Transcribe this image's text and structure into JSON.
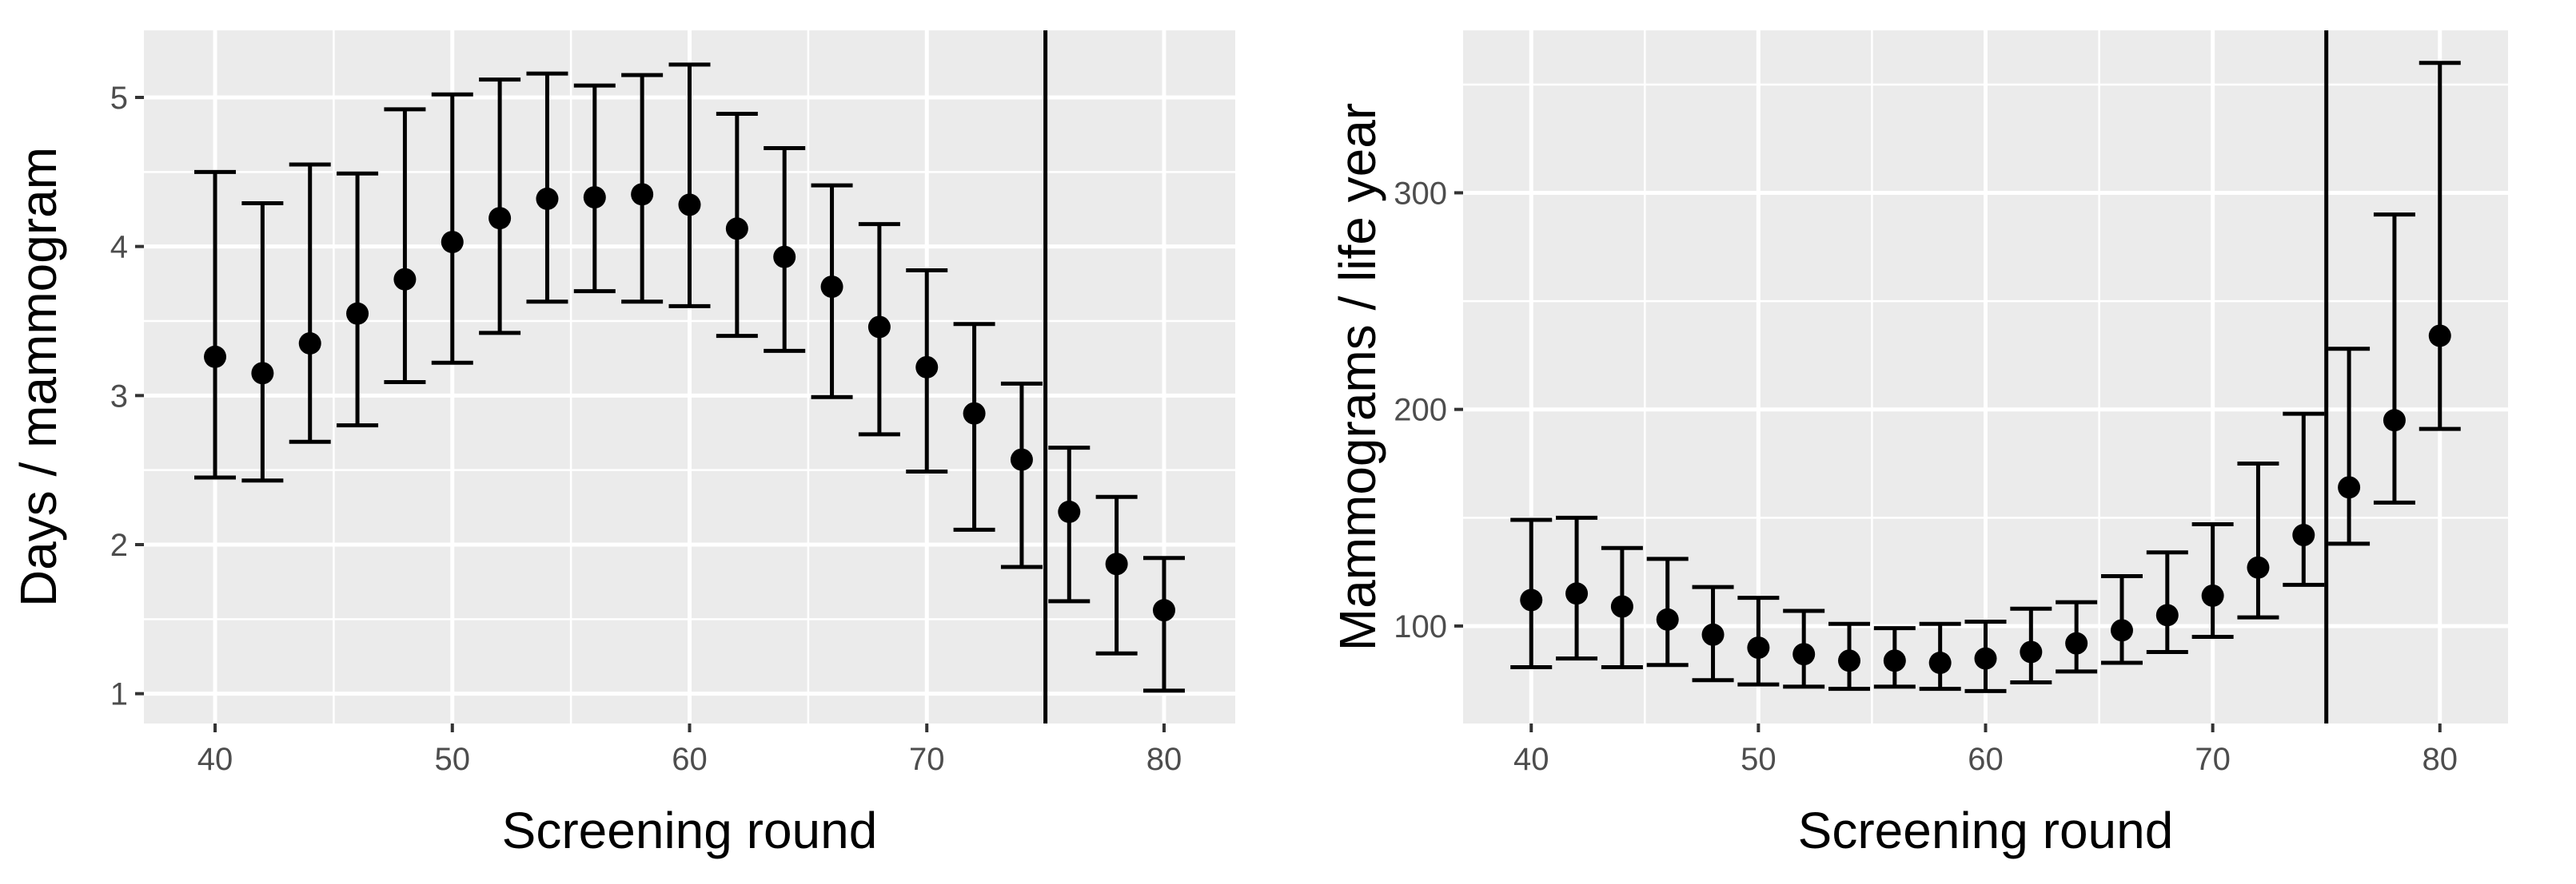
{
  "chart_data": [
    {
      "type": "scatter",
      "subtype": "point-with-errorbars",
      "xlabel": "Screening round",
      "ylabel": "Days / mammogram",
      "xlim": [
        37,
        83
      ],
      "ylim": [
        0.8,
        5.45
      ],
      "x_ticks": [
        40,
        50,
        60,
        70,
        80
      ],
      "y_ticks": [
        1,
        2,
        3,
        4,
        5
      ],
      "grid": true,
      "background": "#ebebeb",
      "vline_x": 75,
      "points": [
        {
          "x": 40,
          "y": 3.26,
          "lower": 2.45,
          "upper": 4.5
        },
        {
          "x": 42,
          "y": 3.15,
          "lower": 2.43,
          "upper": 4.29
        },
        {
          "x": 44,
          "y": 3.35,
          "lower": 2.69,
          "upper": 4.55
        },
        {
          "x": 46,
          "y": 3.55,
          "lower": 2.8,
          "upper": 4.49
        },
        {
          "x": 48,
          "y": 3.78,
          "lower": 3.09,
          "upper": 4.92
        },
        {
          "x": 50,
          "y": 4.03,
          "lower": 3.22,
          "upper": 5.02
        },
        {
          "x": 52,
          "y": 4.19,
          "lower": 3.42,
          "upper": 5.12
        },
        {
          "x": 54,
          "y": 4.32,
          "lower": 3.63,
          "upper": 5.16
        },
        {
          "x": 56,
          "y": 4.33,
          "lower": 3.7,
          "upper": 5.08
        },
        {
          "x": 58,
          "y": 4.35,
          "lower": 3.63,
          "upper": 5.15
        },
        {
          "x": 60,
          "y": 4.28,
          "lower": 3.6,
          "upper": 5.22
        },
        {
          "x": 62,
          "y": 4.12,
          "lower": 3.4,
          "upper": 4.89
        },
        {
          "x": 64,
          "y": 3.93,
          "lower": 3.3,
          "upper": 4.66
        },
        {
          "x": 66,
          "y": 3.73,
          "lower": 2.99,
          "upper": 4.41
        },
        {
          "x": 68,
          "y": 3.46,
          "lower": 2.74,
          "upper": 4.15
        },
        {
          "x": 70,
          "y": 3.19,
          "lower": 2.49,
          "upper": 3.84
        },
        {
          "x": 72,
          "y": 2.88,
          "lower": 2.1,
          "upper": 3.48
        },
        {
          "x": 74,
          "y": 2.57,
          "lower": 1.85,
          "upper": 3.08
        },
        {
          "x": 76,
          "y": 2.22,
          "lower": 1.62,
          "upper": 2.65
        },
        {
          "x": 78,
          "y": 1.87,
          "lower": 1.27,
          "upper": 2.32
        },
        {
          "x": 80,
          "y": 1.56,
          "lower": 1.02,
          "upper": 1.91
        }
      ]
    },
    {
      "type": "scatter",
      "subtype": "point-with-errorbars",
      "xlabel": "Screening round",
      "ylabel": "Mammograms / life year",
      "xlim": [
        37,
        83
      ],
      "ylim": [
        55,
        375
      ],
      "x_ticks": [
        40,
        50,
        60,
        70,
        80
      ],
      "y_ticks": [
        100,
        200,
        300
      ],
      "grid": true,
      "background": "#ebebeb",
      "vline_x": 75,
      "points": [
        {
          "x": 40,
          "y": 112,
          "lower": 81,
          "upper": 149
        },
        {
          "x": 42,
          "y": 115,
          "lower": 85,
          "upper": 150
        },
        {
          "x": 44,
          "y": 109,
          "lower": 81,
          "upper": 136
        },
        {
          "x": 46,
          "y": 103,
          "lower": 82,
          "upper": 131
        },
        {
          "x": 48,
          "y": 96,
          "lower": 75,
          "upper": 118
        },
        {
          "x": 50,
          "y": 90,
          "lower": 73,
          "upper": 113
        },
        {
          "x": 52,
          "y": 87,
          "lower": 72,
          "upper": 107
        },
        {
          "x": 54,
          "y": 84,
          "lower": 71,
          "upper": 101
        },
        {
          "x": 56,
          "y": 84,
          "lower": 72,
          "upper": 99
        },
        {
          "x": 58,
          "y": 83,
          "lower": 71,
          "upper": 101
        },
        {
          "x": 60,
          "y": 85,
          "lower": 70,
          "upper": 102
        },
        {
          "x": 62,
          "y": 88,
          "lower": 74,
          "upper": 108
        },
        {
          "x": 64,
          "y": 92,
          "lower": 79,
          "upper": 111
        },
        {
          "x": 66,
          "y": 98,
          "lower": 83,
          "upper": 123
        },
        {
          "x": 68,
          "y": 105,
          "lower": 88,
          "upper": 134
        },
        {
          "x": 70,
          "y": 114,
          "lower": 95,
          "upper": 147
        },
        {
          "x": 72,
          "y": 127,
          "lower": 104,
          "upper": 175
        },
        {
          "x": 74,
          "y": 142,
          "lower": 119,
          "upper": 198
        },
        {
          "x": 76,
          "y": 164,
          "lower": 138,
          "upper": 228
        },
        {
          "x": 78,
          "y": 195,
          "lower": 157,
          "upper": 290
        },
        {
          "x": 80,
          "y": 234,
          "lower": 191,
          "upper": 360
        }
      ]
    }
  ]
}
